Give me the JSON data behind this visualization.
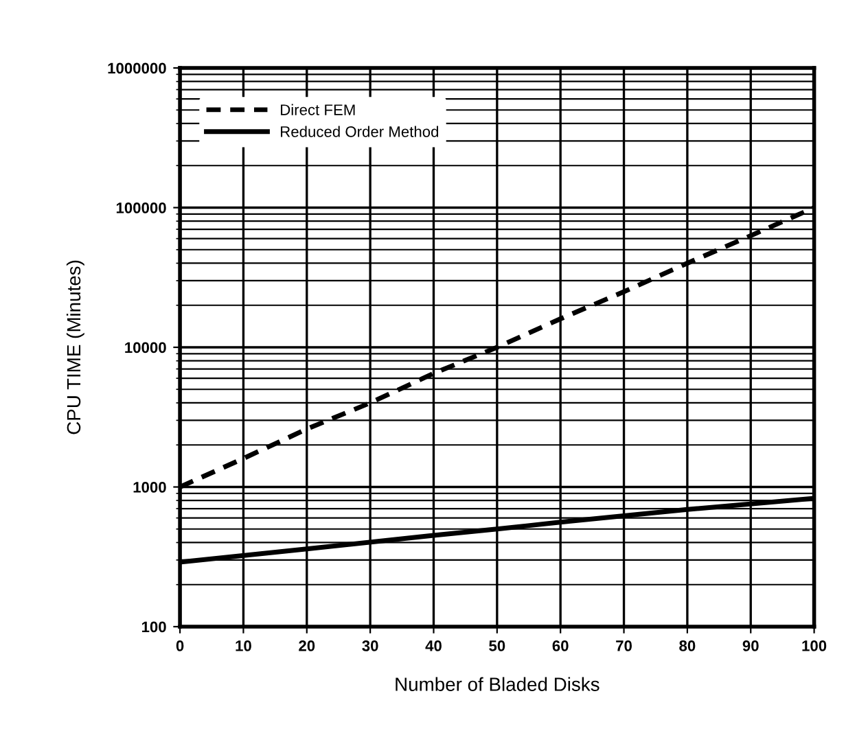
{
  "chart_data": {
    "type": "line",
    "xlabel": "Number of Bladed Disks",
    "ylabel": "CPU TIME (Minutes)",
    "log": "y",
    "grid": true,
    "legend": "top left",
    "xlim": [
      0,
      100
    ],
    "xticks": [
      0,
      10,
      20,
      30,
      40,
      50,
      60,
      70,
      80,
      90,
      100
    ],
    "ylim": [
      100,
      1000000
    ],
    "yticks": [
      100,
      1000,
      10000,
      100000,
      1000000
    ],
    "series": [
      {
        "name": "Direct FEM",
        "color": "#000000",
        "line_style": "dashed",
        "x": [
          0,
          10,
          20,
          30,
          40,
          50,
          60,
          70,
          80,
          90,
          100
        ],
        "values": [
          1000,
          1600,
          2600,
          4000,
          6500,
          10000,
          16000,
          25000,
          40000,
          63000,
          100000
        ]
      },
      {
        "name": "Reduced Order Method",
        "color": "#000000",
        "line_style": "solid",
        "x": [
          0,
          20,
          40,
          50,
          60,
          80,
          100
        ],
        "values": [
          290,
          360,
          450,
          500,
          560,
          690,
          830
        ]
      }
    ]
  }
}
